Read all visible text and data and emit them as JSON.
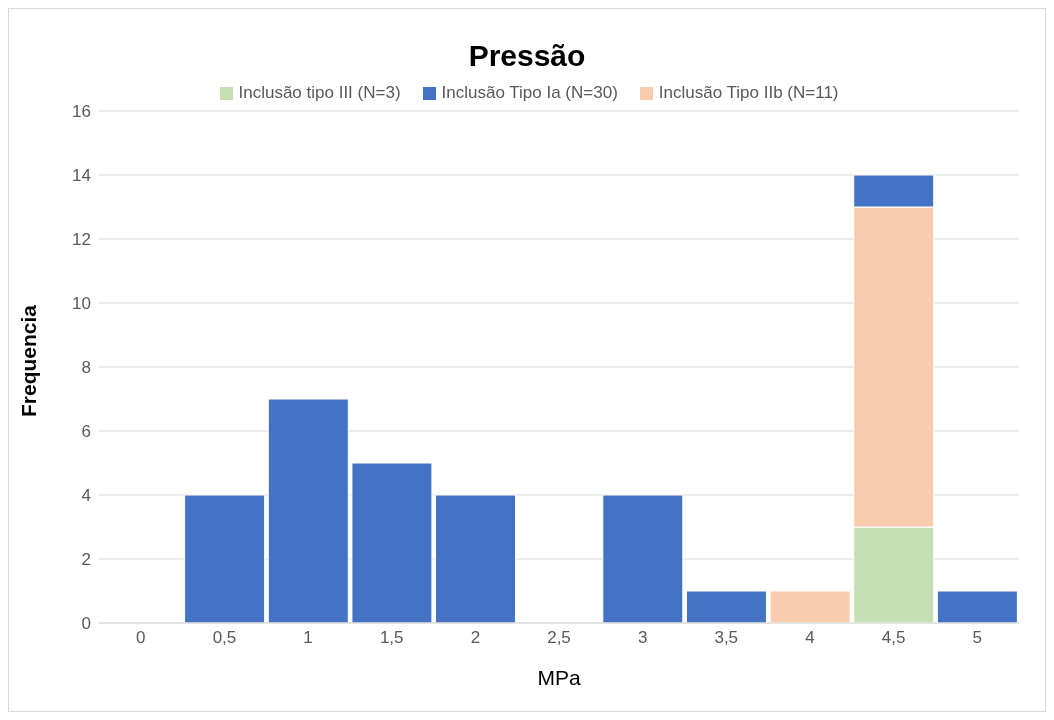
{
  "chart_data": {
    "type": "bar",
    "title": "Pressão",
    "xlabel": "MPa",
    "ylabel": "Frequencia",
    "categories": [
      "0",
      "0,5",
      "1",
      "1,5",
      "2",
      "2,5",
      "3",
      "3,5",
      "4",
      "4,5",
      "5"
    ],
    "stacked": true,
    "series": [
      {
        "name": "Inclusão tipo III (N=3)",
        "color": "#c5e0b4",
        "values": [
          0,
          0,
          0,
          0,
          0,
          0,
          0,
          0,
          0,
          3,
          0
        ]
      },
      {
        "name": "Inclusão Tipo IIb (N=11)",
        "color": "#f8cbad",
        "values": [
          0,
          0,
          0,
          0,
          0,
          0,
          0,
          0,
          1,
          10,
          0
        ]
      },
      {
        "name": "Inclusão Tipo Ia (N=30)",
        "color": "#4472c4",
        "values": [
          0,
          4,
          7,
          5,
          4,
          0,
          4,
          1,
          0,
          1,
          1
        ]
      }
    ],
    "ylim": [
      0,
      16
    ],
    "yticks": [
      0,
      2,
      4,
      6,
      8,
      10,
      12,
      14,
      16
    ],
    "grid": "y",
    "legend": "top"
  }
}
